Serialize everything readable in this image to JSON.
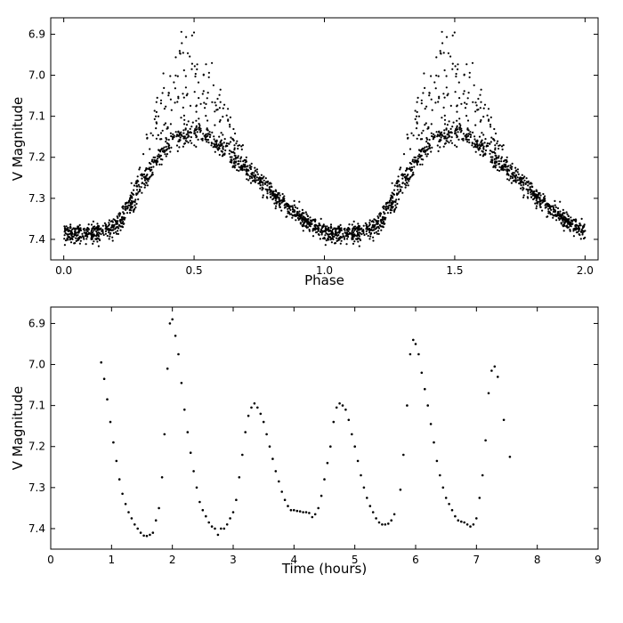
{
  "chart_data": [
    {
      "type": "scatter",
      "xlabel": "Phase",
      "ylabel": "V Magnitude",
      "xlim": [
        -0.05,
        2.05
      ],
      "ylim": [
        7.45,
        6.86
      ],
      "y_inverted": true,
      "xticks": [
        "0.0",
        "0.5",
        "1.0",
        "1.5",
        "2.0"
      ],
      "yticks": [
        "6.9",
        "7.0",
        "7.1",
        "7.2",
        "7.3",
        "7.4"
      ],
      "marker_color": "#000000",
      "grid": false,
      "description_of_data": "Phase-folded light curve of about 1500 observations per cycle, repeated over two cycles (phase 0-2). Baseline near V=7.39 between phase 0.0-0.25; rapid rise to a scattered maximum near phase 0.45-0.55 (upper envelope ~6.88, dense lower ridge ~7.15); slower decline back to ~7.38 by phase 0.95.",
      "envelope_phase": [
        0.0,
        0.05,
        0.1,
        0.15,
        0.2,
        0.25,
        0.3,
        0.35,
        0.4,
        0.45,
        0.5,
        0.55,
        0.6,
        0.65,
        0.7,
        0.75,
        0.8,
        0.85,
        0.9,
        0.95,
        1.0
      ],
      "envelope_mean": [
        7.385,
        7.39,
        7.39,
        7.385,
        7.37,
        7.33,
        7.26,
        7.17,
        7.08,
        7.02,
        7.0,
        7.04,
        7.1,
        7.17,
        7.22,
        7.26,
        7.29,
        7.32,
        7.345,
        7.365,
        7.385
      ],
      "envelope_lower_ridge": [
        7.385,
        7.39,
        7.39,
        7.385,
        7.37,
        7.33,
        7.27,
        7.21,
        7.17,
        7.15,
        7.14,
        7.15,
        7.17,
        7.2,
        7.23,
        7.26,
        7.29,
        7.32,
        7.345,
        7.365,
        7.385
      ],
      "envelope_upper_bright": [
        7.37,
        7.375,
        7.37,
        7.365,
        7.35,
        7.3,
        7.2,
        7.05,
        6.95,
        6.89,
        6.88,
        6.92,
        7.03,
        7.12,
        7.19,
        7.24,
        7.28,
        7.31,
        7.34,
        7.36,
        7.37
      ]
    },
    {
      "type": "scatter",
      "xlabel": "Time (hours)",
      "ylabel": "V Magnitude",
      "xlim": [
        0,
        9
      ],
      "ylim": [
        7.45,
        6.86
      ],
      "y_inverted": true,
      "xticks": [
        "0",
        "1",
        "2",
        "3",
        "4",
        "5",
        "6",
        "7",
        "8",
        "9"
      ],
      "yticks": [
        "6.9",
        "7.0",
        "7.1",
        "7.2",
        "7.3",
        "7.4"
      ],
      "marker_color": "#000000",
      "grid": false,
      "points": [
        [
          0.83,
          6.995
        ],
        [
          0.88,
          7.035
        ],
        [
          0.93,
          7.085
        ],
        [
          0.98,
          7.14
        ],
        [
          1.03,
          7.19
        ],
        [
          1.08,
          7.235
        ],
        [
          1.13,
          7.28
        ],
        [
          1.18,
          7.315
        ],
        [
          1.23,
          7.34
        ],
        [
          1.28,
          7.36
        ],
        [
          1.33,
          7.375
        ],
        [
          1.38,
          7.39
        ],
        [
          1.43,
          7.4
        ],
        [
          1.48,
          7.41
        ],
        [
          1.53,
          7.417
        ],
        [
          1.58,
          7.418
        ],
        [
          1.63,
          7.415
        ],
        [
          1.68,
          7.41
        ],
        [
          1.73,
          7.38
        ],
        [
          1.78,
          7.35
        ],
        [
          1.83,
          7.275
        ],
        [
          1.87,
          7.17
        ],
        [
          1.92,
          7.01
        ],
        [
          1.96,
          6.9
        ],
        [
          2.0,
          6.89
        ],
        [
          2.05,
          6.93
        ],
        [
          2.1,
          6.975
        ],
        [
          2.15,
          7.045
        ],
        [
          2.2,
          7.11
        ],
        [
          2.25,
          7.165
        ],
        [
          2.3,
          7.215
        ],
        [
          2.35,
          7.26
        ],
        [
          2.4,
          7.3
        ],
        [
          2.45,
          7.335
        ],
        [
          2.5,
          7.355
        ],
        [
          2.55,
          7.37
        ],
        [
          2.6,
          7.385
        ],
        [
          2.65,
          7.395
        ],
        [
          2.7,
          7.4
        ],
        [
          2.75,
          7.415
        ],
        [
          2.8,
          7.4
        ],
        [
          2.85,
          7.4
        ],
        [
          2.9,
          7.39
        ],
        [
          2.95,
          7.375
        ],
        [
          3.0,
          7.36
        ],
        [
          3.05,
          7.33
        ],
        [
          3.1,
          7.275
        ],
        [
          3.15,
          7.22
        ],
        [
          3.2,
          7.165
        ],
        [
          3.25,
          7.125
        ],
        [
          3.3,
          7.105
        ],
        [
          3.35,
          7.095
        ],
        [
          3.4,
          7.105
        ],
        [
          3.45,
          7.12
        ],
        [
          3.5,
          7.14
        ],
        [
          3.55,
          7.17
        ],
        [
          3.6,
          7.2
        ],
        [
          3.65,
          7.23
        ],
        [
          3.7,
          7.26
        ],
        [
          3.75,
          7.285
        ],
        [
          3.8,
          7.31
        ],
        [
          3.85,
          7.33
        ],
        [
          3.9,
          7.345
        ],
        [
          3.95,
          7.355
        ],
        [
          4.0,
          7.355
        ],
        [
          4.05,
          7.357
        ],
        [
          4.1,
          7.358
        ],
        [
          4.15,
          7.36
        ],
        [
          4.2,
          7.36
        ],
        [
          4.25,
          7.362
        ],
        [
          4.3,
          7.372
        ],
        [
          4.35,
          7.365
        ],
        [
          4.4,
          7.35
        ],
        [
          4.45,
          7.32
        ],
        [
          4.5,
          7.28
        ],
        [
          4.55,
          7.24
        ],
        [
          4.6,
          7.2
        ],
        [
          4.65,
          7.14
        ],
        [
          4.7,
          7.105
        ],
        [
          4.75,
          7.095
        ],
        [
          4.8,
          7.1
        ],
        [
          4.85,
          7.11
        ],
        [
          4.9,
          7.135
        ],
        [
          4.95,
          7.17
        ],
        [
          5.0,
          7.2
        ],
        [
          5.05,
          7.235
        ],
        [
          5.1,
          7.27
        ],
        [
          5.15,
          7.3
        ],
        [
          5.2,
          7.325
        ],
        [
          5.25,
          7.345
        ],
        [
          5.3,
          7.36
        ],
        [
          5.35,
          7.375
        ],
        [
          5.4,
          7.385
        ],
        [
          5.45,
          7.39
        ],
        [
          5.5,
          7.39
        ],
        [
          5.55,
          7.388
        ],
        [
          5.6,
          7.38
        ],
        [
          5.65,
          7.365
        ],
        [
          5.75,
          7.305
        ],
        [
          5.8,
          7.22
        ],
        [
          5.86,
          7.1
        ],
        [
          5.91,
          6.975
        ],
        [
          5.96,
          6.94
        ],
        [
          6.0,
          6.95
        ],
        [
          6.05,
          6.975
        ],
        [
          6.1,
          7.02
        ],
        [
          6.15,
          7.06
        ],
        [
          6.2,
          7.1
        ],
        [
          6.25,
          7.145
        ],
        [
          6.3,
          7.19
        ],
        [
          6.35,
          7.235
        ],
        [
          6.4,
          7.27
        ],
        [
          6.45,
          7.3
        ],
        [
          6.5,
          7.325
        ],
        [
          6.55,
          7.34
        ],
        [
          6.6,
          7.355
        ],
        [
          6.65,
          7.37
        ],
        [
          6.7,
          7.38
        ],
        [
          6.75,
          7.383
        ],
        [
          6.8,
          7.385
        ],
        [
          6.85,
          7.39
        ],
        [
          6.9,
          7.395
        ],
        [
          6.95,
          7.39
        ],
        [
          7.0,
          7.375
        ],
        [
          7.05,
          7.325
        ],
        [
          7.1,
          7.27
        ],
        [
          7.15,
          7.185
        ],
        [
          7.2,
          7.07
        ],
        [
          7.25,
          7.015
        ],
        [
          7.3,
          7.005
        ],
        [
          7.35,
          7.03
        ],
        [
          7.45,
          7.135
        ],
        [
          7.55,
          7.225
        ]
      ]
    }
  ]
}
